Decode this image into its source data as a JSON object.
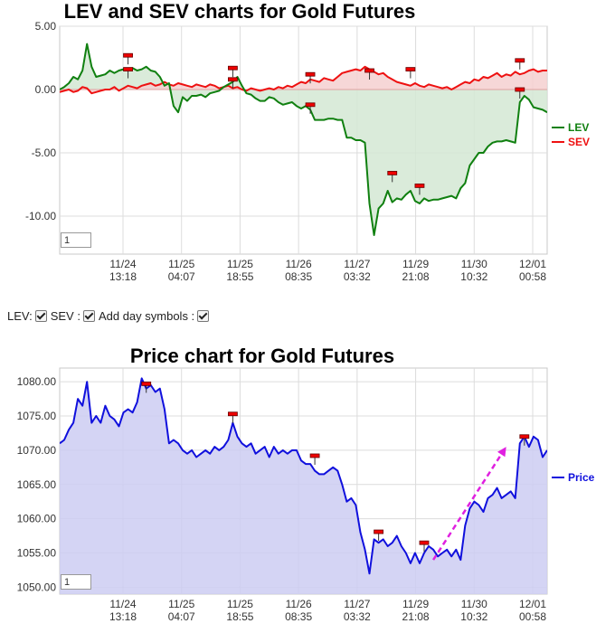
{
  "controls": {
    "lev_label": "LEV:",
    "sev_label": "SEV :",
    "day_symbols_label": "Add day symbols :",
    "lev_checked": true,
    "sev_checked": true,
    "day_symbols_checked": true
  },
  "chart_data": [
    {
      "type": "line",
      "title": "LEV and SEV charts for Gold Futures",
      "x_tick_labels": [
        [
          "11/24",
          "13:18"
        ],
        [
          "11/25",
          "04:07"
        ],
        [
          "11/25",
          "18:55"
        ],
        [
          "11/26",
          "08:35"
        ],
        [
          "11/27",
          "03:32"
        ],
        [
          "11/29",
          "21:08"
        ],
        [
          "11/30",
          "10:32"
        ],
        [
          "12/01",
          "00:58"
        ]
      ],
      "y_tick_labels": [
        "5.00",
        "0.00",
        "-5.00",
        "-10.00"
      ],
      "ylim": [
        -13,
        5
      ],
      "legend_position": "right",
      "zoom_value": "1",
      "series": [
        {
          "name": "LEV",
          "color": "#108010",
          "fill": "#d3e8d3",
          "values": [
            0.0,
            0.2,
            0.5,
            1.0,
            0.8,
            1.5,
            3.6,
            1.8,
            1.0,
            1.1,
            1.2,
            1.5,
            1.3,
            1.5,
            1.6,
            1.6,
            1.7,
            1.5,
            1.6,
            1.8,
            1.5,
            1.4,
            1.0,
            0.3,
            0.5,
            -1.3,
            -1.8,
            -0.6,
            -0.9,
            -0.5,
            -0.5,
            -0.4,
            -0.6,
            -0.3,
            -0.2,
            -0.1,
            0.2,
            0.4,
            0.6,
            1.0,
            0.3,
            -0.3,
            -0.4,
            -0.7,
            -0.9,
            -0.9,
            -0.6,
            -0.7,
            -1.0,
            -1.2,
            -1.1,
            -1.0,
            -1.3,
            -1.5,
            -1.3,
            -1.6,
            -2.4,
            -2.4,
            -2.4,
            -2.3,
            -2.3,
            -2.4,
            -2.4,
            -3.8,
            -3.8,
            -4.0,
            -4.0,
            -4.2,
            -9.0,
            -11.5,
            -9.4,
            -9.0,
            -8.0,
            -8.9,
            -8.6,
            -8.7,
            -8.3,
            -8.0,
            -8.8,
            -9.0,
            -8.6,
            -8.8,
            -8.7,
            -8.7,
            -8.6,
            -8.5,
            -8.4,
            -8.6,
            -7.8,
            -7.4,
            -6.0,
            -5.5,
            -5.0,
            -5.0,
            -4.5,
            -4.2,
            -4.1,
            -4.1,
            -4.0,
            -4.1,
            -4.2,
            -1.0,
            -0.5,
            -0.8,
            -1.4,
            -1.5,
            -1.6,
            -1.8
          ]
        },
        {
          "name": "SEV",
          "color": "#ee1111",
          "fill": "#f5d0d0",
          "values": [
            -0.2,
            -0.1,
            0.0,
            -0.2,
            -0.1,
            0.2,
            0.1,
            -0.3,
            -0.2,
            -0.1,
            0.0,
            0.0,
            0.2,
            -0.1,
            0.1,
            0.3,
            0.2,
            0.1,
            0.3,
            0.4,
            0.5,
            0.3,
            0.4,
            0.6,
            0.4,
            0.3,
            0.5,
            0.4,
            0.3,
            0.2,
            0.4,
            0.3,
            0.2,
            0.4,
            0.3,
            0.1,
            0.2,
            0.3,
            0.1,
            0.2,
            0.0,
            -0.1,
            0.1,
            0.0,
            -0.1,
            0.0,
            0.1,
            0.0,
            0.2,
            0.1,
            0.3,
            0.2,
            0.4,
            0.6,
            0.5,
            0.8,
            0.7,
            0.6,
            0.9,
            0.8,
            0.7,
            1.0,
            1.3,
            1.4,
            1.5,
            1.6,
            1.5,
            1.8,
            1.6,
            1.4,
            1.2,
            1.3,
            1.0,
            0.8,
            0.6,
            0.5,
            0.4,
            0.3,
            0.5,
            0.3,
            0.2,
            0.4,
            0.3,
            0.2,
            0.1,
            0.2,
            0.0,
            0.2,
            0.4,
            0.6,
            0.5,
            0.8,
            0.7,
            1.0,
            0.9,
            1.1,
            1.3,
            1.0,
            1.2,
            1.1,
            1.4,
            1.2,
            1.3,
            1.5,
            1.6,
            1.4,
            1.5,
            1.5
          ]
        }
      ],
      "day_markers": [
        {
          "series": "LEV",
          "index": 15,
          "value": 1.6
        },
        {
          "series": "LEV",
          "index": 15,
          "value": 2.7
        },
        {
          "series": "LEV",
          "index": 38,
          "value": 0.8
        },
        {
          "series": "LEV",
          "index": 38,
          "value": 1.7
        },
        {
          "series": "LEV",
          "index": 55,
          "value": -1.2
        },
        {
          "series": "LEV",
          "index": 55,
          "value": 1.2
        },
        {
          "series": "LEV",
          "index": 68,
          "value": 1.5
        },
        {
          "series": "LEV",
          "index": 73,
          "value": -6.6
        },
        {
          "series": "LEV",
          "index": 77,
          "value": 1.6
        },
        {
          "series": "LEV",
          "index": 79,
          "value": -7.6
        },
        {
          "series": "LEV",
          "index": 101,
          "value": 2.3
        },
        {
          "series": "LEV",
          "index": 101,
          "value": 0.0
        }
      ]
    },
    {
      "type": "area",
      "title": "Price chart for Gold Futures",
      "x_tick_labels": [
        [
          "11/24",
          "13:18"
        ],
        [
          "11/25",
          "04:07"
        ],
        [
          "11/25",
          "18:55"
        ],
        [
          "11/26",
          "08:35"
        ],
        [
          "11/27",
          "03:32"
        ],
        [
          "11/29",
          "21:08"
        ],
        [
          "11/30",
          "10:32"
        ],
        [
          "12/01",
          "00:58"
        ]
      ],
      "y_tick_labels": [
        "1080.00",
        "1075.00",
        "1070.00",
        "1065.00",
        "1060.00",
        "1055.00",
        "1050.00"
      ],
      "ylim": [
        1049,
        1082
      ],
      "legend_position": "right",
      "zoom_value": "1",
      "series": [
        {
          "name": "Price",
          "color": "#1010dd",
          "fill": "#ccccf2",
          "values": [
            1071.0,
            1071.5,
            1073.0,
            1074.0,
            1077.5,
            1076.5,
            1080.0,
            1074.0,
            1075.0,
            1074.0,
            1076.5,
            1075.0,
            1074.5,
            1073.5,
            1075.5,
            1076.0,
            1075.5,
            1077.0,
            1080.5,
            1079.0,
            1079.5,
            1078.5,
            1079.0,
            1076.0,
            1071.0,
            1071.5,
            1071.0,
            1070.0,
            1069.5,
            1070.0,
            1069.0,
            1069.5,
            1070.0,
            1069.5,
            1070.5,
            1070.0,
            1070.5,
            1071.5,
            1074.0,
            1072.0,
            1071.0,
            1070.5,
            1071.0,
            1069.5,
            1070.0,
            1070.5,
            1069.0,
            1070.5,
            1069.5,
            1070.0,
            1069.5,
            1070.0,
            1070.0,
            1068.5,
            1068.0,
            1068.0,
            1067.0,
            1066.5,
            1066.5,
            1067.0,
            1067.5,
            1067.0,
            1065.0,
            1062.5,
            1063.0,
            1062.0,
            1058.0,
            1055.5,
            1052.0,
            1057.0,
            1056.5,
            1057.0,
            1056.0,
            1056.5,
            1057.5,
            1056.0,
            1055.0,
            1053.5,
            1055.0,
            1053.5,
            1055.0,
            1056.0,
            1055.5,
            1054.5,
            1055.0,
            1055.5,
            1054.5,
            1055.5,
            1054.0,
            1059.0,
            1061.5,
            1062.5,
            1062.0,
            1061.0,
            1063.0,
            1063.5,
            1064.5,
            1063.0,
            1063.5,
            1064.0,
            1063.0,
            1071.0,
            1072.0,
            1070.5,
            1072.0,
            1071.5,
            1069.0,
            1070.0
          ]
        }
      ],
      "day_markers": [
        {
          "series": "Price",
          "index": 19,
          "value": 1079.7
        },
        {
          "series": "Price",
          "index": 38,
          "value": 1075.3
        },
        {
          "series": "Price",
          "index": 56,
          "value": 1069.2
        },
        {
          "series": "Price",
          "index": 70,
          "value": 1058.1
        },
        {
          "series": "Price",
          "index": 80,
          "value": 1056.5
        },
        {
          "series": "Price",
          "index": 102,
          "value": 1072.0
        }
      ],
      "trend_arrow": {
        "color": "#e020e0",
        "from": {
          "index": 82,
          "value": 1054.0
        },
        "to": {
          "index": 98,
          "value": 1070.5
        }
      }
    }
  ]
}
